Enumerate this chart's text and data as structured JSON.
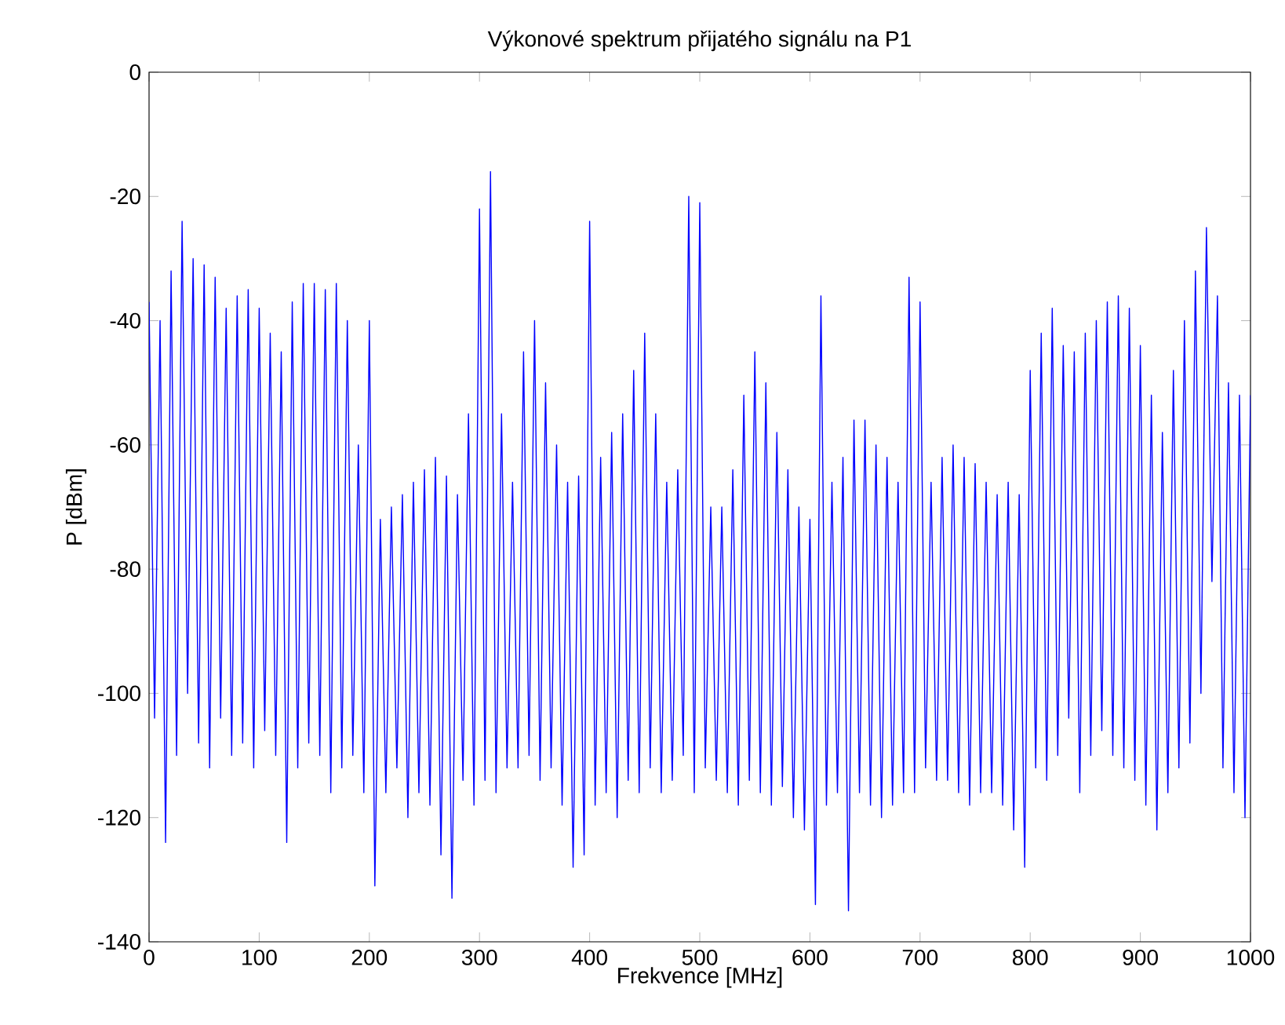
{
  "chart_data": {
    "type": "line",
    "title": "Výkonové spektrum přijatého signálu na P1",
    "xlabel": "Frekvence [MHz]",
    "ylabel": "P [dBm]",
    "xlim": [
      0,
      1000
    ],
    "ylim": [
      -140,
      0
    ],
    "xticks": [
      0,
      100,
      200,
      300,
      400,
      500,
      600,
      700,
      800,
      900,
      1000
    ],
    "yticks": [
      -140,
      -120,
      -100,
      -80,
      -60,
      -40,
      -20,
      0
    ],
    "grid": false,
    "marker": "none",
    "line_style": "solid",
    "series": [
      {
        "color": "#0000ff",
        "x": [
          0,
          5,
          10,
          15,
          20,
          25,
          30,
          35,
          40,
          45,
          50,
          55,
          60,
          65,
          70,
          75,
          80,
          85,
          90,
          95,
          100,
          105,
          110,
          115,
          120,
          125,
          130,
          135,
          140,
          145,
          150,
          155,
          160,
          165,
          170,
          175,
          180,
          185,
          190,
          195,
          200,
          205,
          210,
          215,
          220,
          225,
          230,
          235,
          240,
          245,
          250,
          255,
          260,
          265,
          270,
          275,
          280,
          285,
          290,
          295,
          300,
          305,
          310,
          315,
          320,
          325,
          330,
          335,
          340,
          345,
          350,
          355,
          360,
          365,
          370,
          375,
          380,
          385,
          390,
          395,
          400,
          405,
          410,
          415,
          420,
          425,
          430,
          435,
          440,
          445,
          450,
          455,
          460,
          465,
          470,
          475,
          480,
          485,
          490,
          495,
          500,
          505,
          510,
          515,
          520,
          525,
          530,
          535,
          540,
          545,
          550,
          555,
          560,
          565,
          570,
          575,
          580,
          585,
          590,
          595,
          600,
          605,
          610,
          615,
          620,
          625,
          630,
          635,
          640,
          645,
          650,
          655,
          660,
          665,
          670,
          675,
          680,
          685,
          690,
          695,
          700,
          705,
          710,
          715,
          720,
          725,
          730,
          735,
          740,
          745,
          750,
          755,
          760,
          765,
          770,
          775,
          780,
          785,
          790,
          795,
          800,
          805,
          810,
          815,
          820,
          825,
          830,
          835,
          840,
          845,
          850,
          855,
          860,
          865,
          870,
          875,
          880,
          885,
          890,
          895,
          900,
          905,
          910,
          915,
          920,
          925,
          930,
          935,
          940,
          945,
          950,
          955,
          960,
          965,
          970,
          975,
          980,
          985,
          990,
          995,
          1000
        ],
        "values": [
          -37,
          -104,
          -40,
          -124,
          -32,
          -110,
          -24,
          -100,
          -30,
          -108,
          -31,
          -112,
          -33,
          -104,
          -38,
          -110,
          -36,
          -108,
          -35,
          -112,
          -38,
          -106,
          -42,
          -110,
          -45,
          -124,
          -37,
          -112,
          -34,
          -108,
          -34,
          -110,
          -35,
          -116,
          -34,
          -112,
          -40,
          -110,
          -60,
          -116,
          -40,
          -131,
          -72,
          -116,
          -70,
          -112,
          -68,
          -120,
          -66,
          -116,
          -64,
          -118,
          -62,
          -126,
          -65,
          -133,
          -68,
          -114,
          -55,
          -118,
          -22,
          -114,
          -16,
          -116,
          -55,
          -112,
          -66,
          -112,
          -45,
          -110,
          -40,
          -114,
          -50,
          -112,
          -60,
          -118,
          -66,
          -128,
          -65,
          -126,
          -24,
          -118,
          -62,
          -116,
          -58,
          -120,
          -55,
          -114,
          -48,
          -116,
          -42,
          -112,
          -55,
          -116,
          -66,
          -114,
          -64,
          -110,
          -20,
          -116,
          -21,
          -112,
          -70,
          -114,
          -70,
          -116,
          -64,
          -118,
          -52,
          -114,
          -45,
          -116,
          -50,
          -118,
          -58,
          -115,
          -64,
          -120,
          -70,
          -122,
          -72,
          -134,
          -36,
          -118,
          -66,
          -116,
          -62,
          -135,
          -56,
          -116,
          -56,
          -118,
          -60,
          -120,
          -62,
          -118,
          -66,
          -116,
          -33,
          -116,
          -37,
          -112,
          -66,
          -114,
          -62,
          -114,
          -60,
          -116,
          -62,
          -118,
          -63,
          -116,
          -66,
          -116,
          -68,
          -118,
          -66,
          -122,
          -68,
          -128,
          -48,
          -112,
          -42,
          -114,
          -38,
          -110,
          -44,
          -104,
          -45,
          -116,
          -42,
          -110,
          -40,
          -106,
          -37,
          -110,
          -36,
          -112,
          -38,
          -114,
          -44,
          -118,
          -52,
          -122,
          -58,
          -116,
          -48,
          -112,
          -40,
          -108,
          -32,
          -100,
          -25,
          -82,
          -36,
          -112,
          -50,
          -116,
          -52,
          -120,
          -52
        ]
      }
    ]
  }
}
